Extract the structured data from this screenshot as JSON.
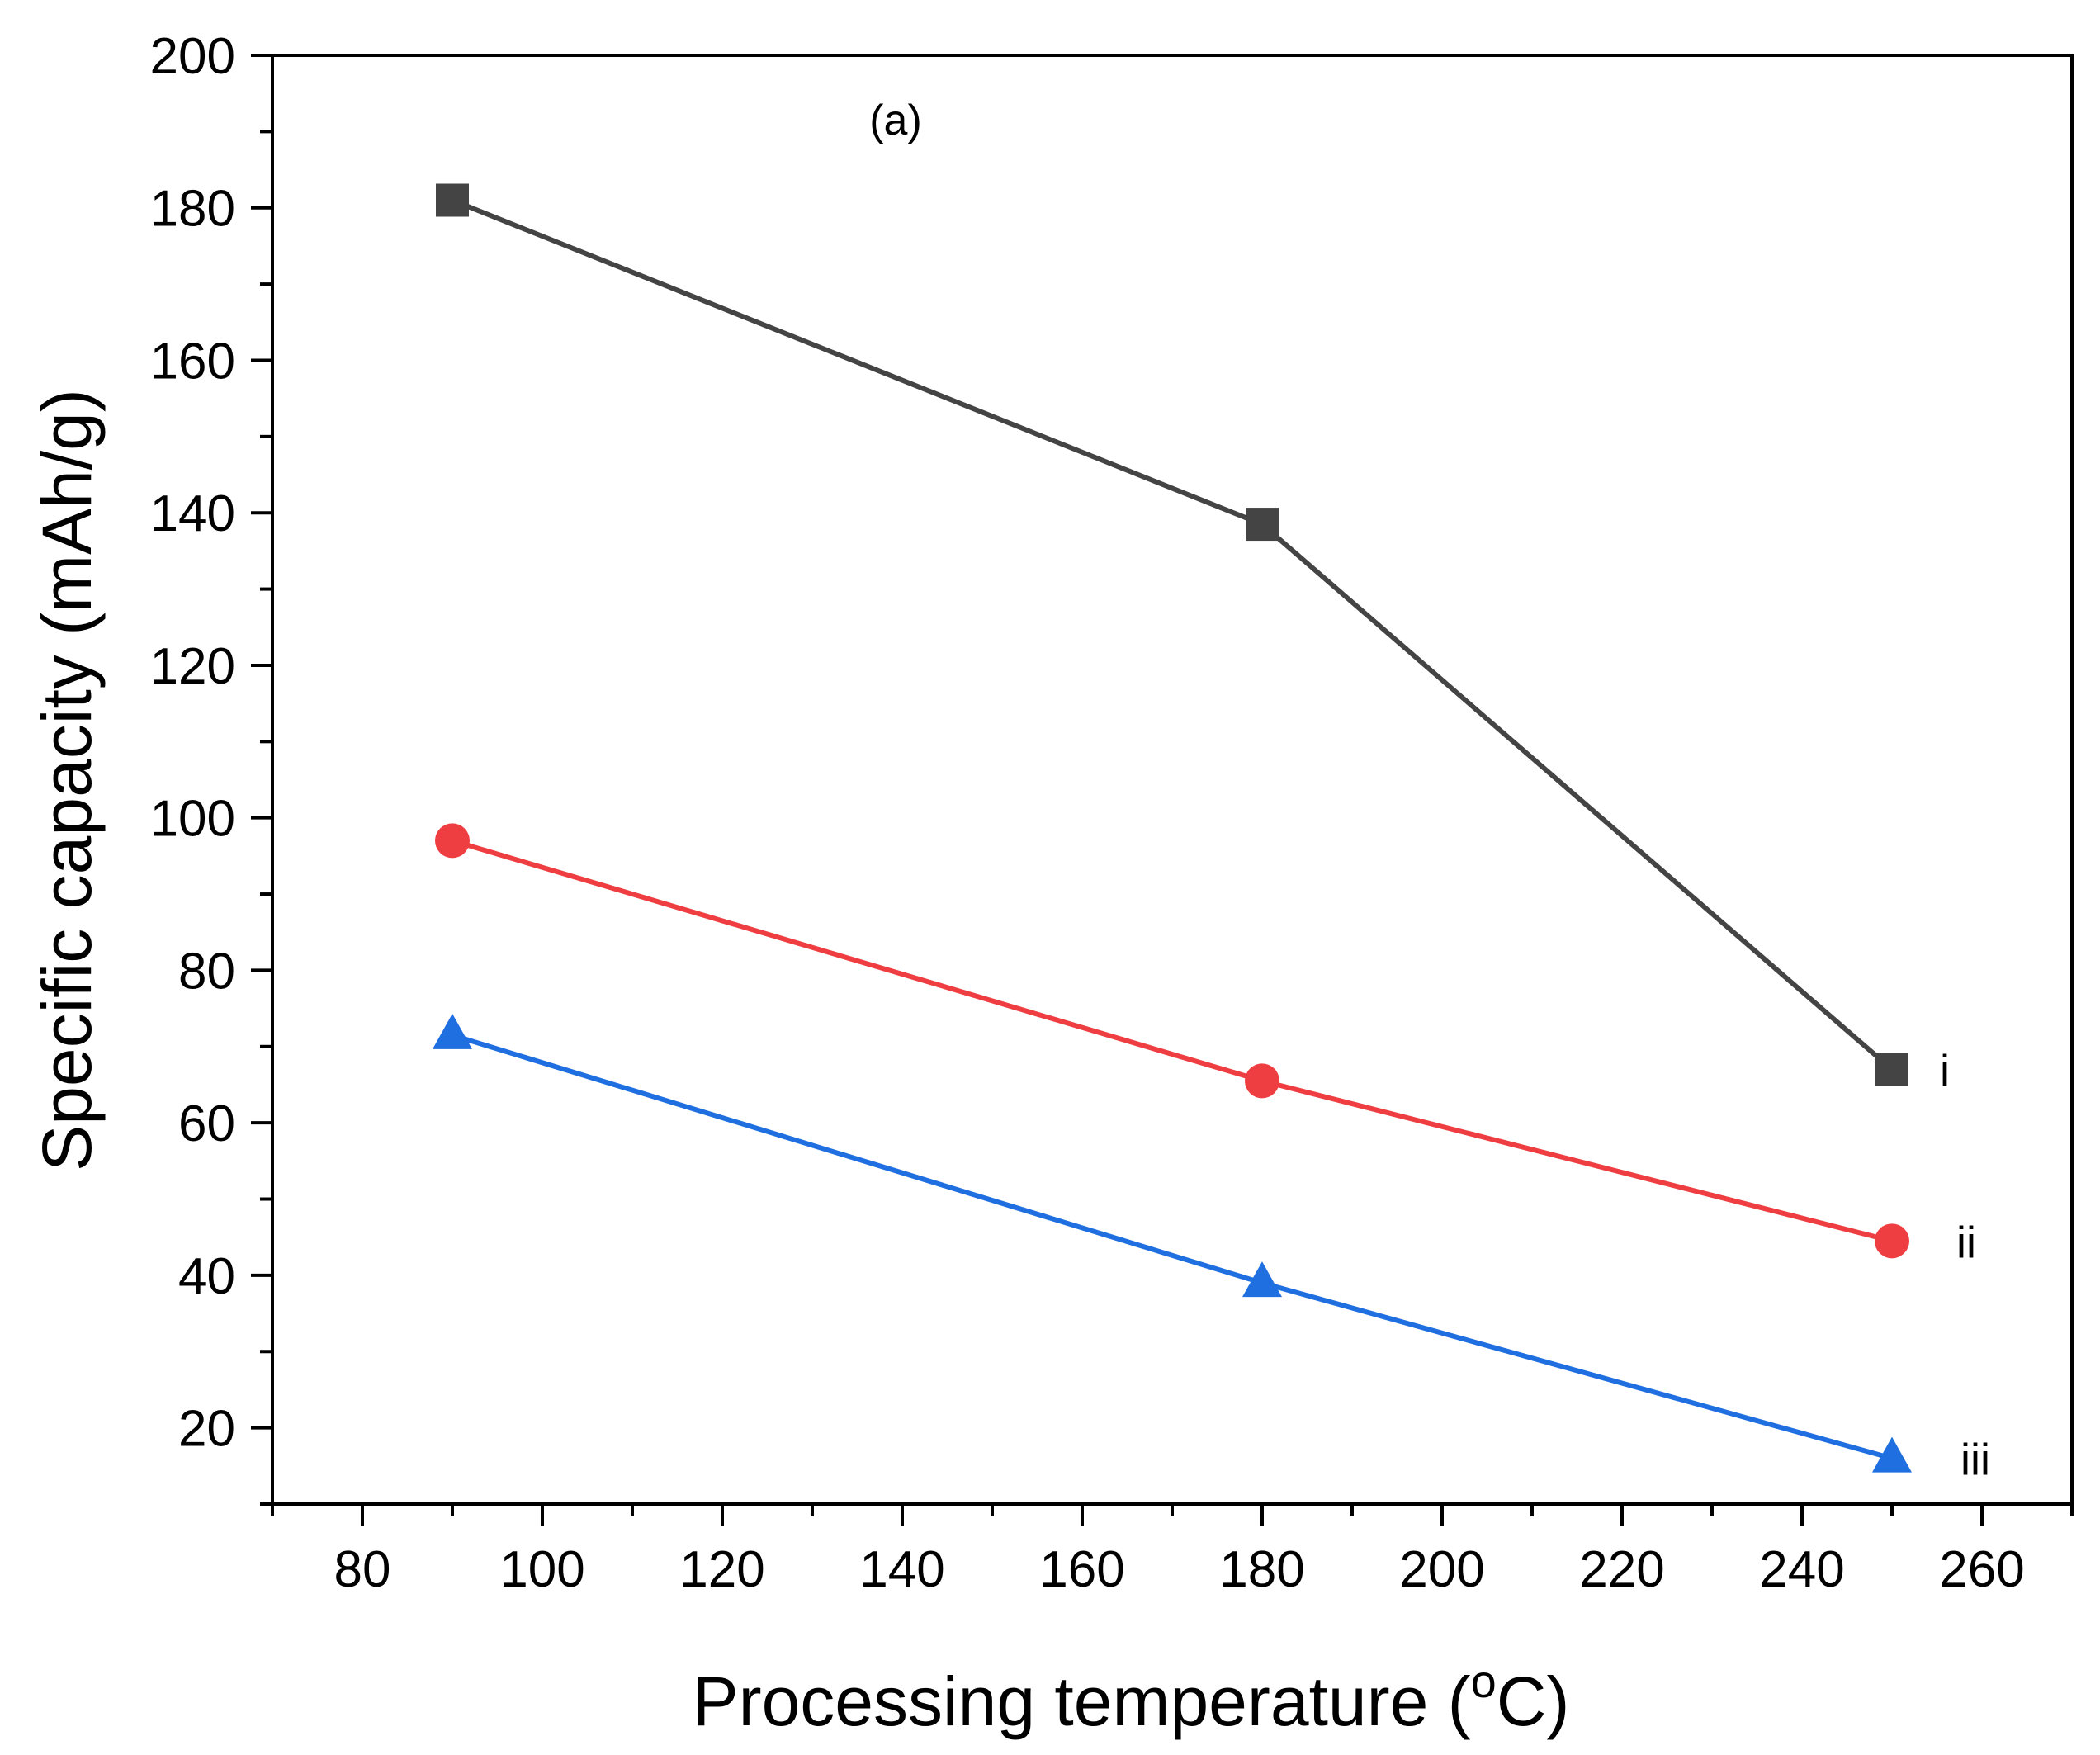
{
  "chart_data": {
    "type": "line",
    "annotation": "(a)",
    "xlabel": "Processing temperature (",
    "xlabel_sup": "o",
    "xlabel_suffix": "C)",
    "ylabel": "Specific capacity (mAh/g)",
    "xlim": [
      70,
      270
    ],
    "ylim": [
      10,
      200
    ],
    "x_ticks": [
      80,
      100,
      120,
      140,
      160,
      180,
      200,
      220,
      240,
      260
    ],
    "y_ticks": [
      20,
      40,
      60,
      80,
      100,
      120,
      140,
      160,
      180,
      200
    ],
    "x_minor_step": 10,
    "y_minor_step": 10,
    "grid": false,
    "series": [
      {
        "name": "i",
        "marker": "square",
        "color": "#444444",
        "x": [
          90,
          180,
          250
        ],
        "values": [
          181,
          138.5,
          67
        ]
      },
      {
        "name": "ii",
        "marker": "circle",
        "color": "#ee3e42",
        "x": [
          90,
          180,
          250
        ],
        "values": [
          97,
          65.5,
          44.5
        ]
      },
      {
        "name": "iii",
        "marker": "triangle",
        "color": "#1f6fe0",
        "x": [
          90,
          180,
          250
        ],
        "values": [
          71.5,
          39,
          16
        ]
      }
    ]
  }
}
